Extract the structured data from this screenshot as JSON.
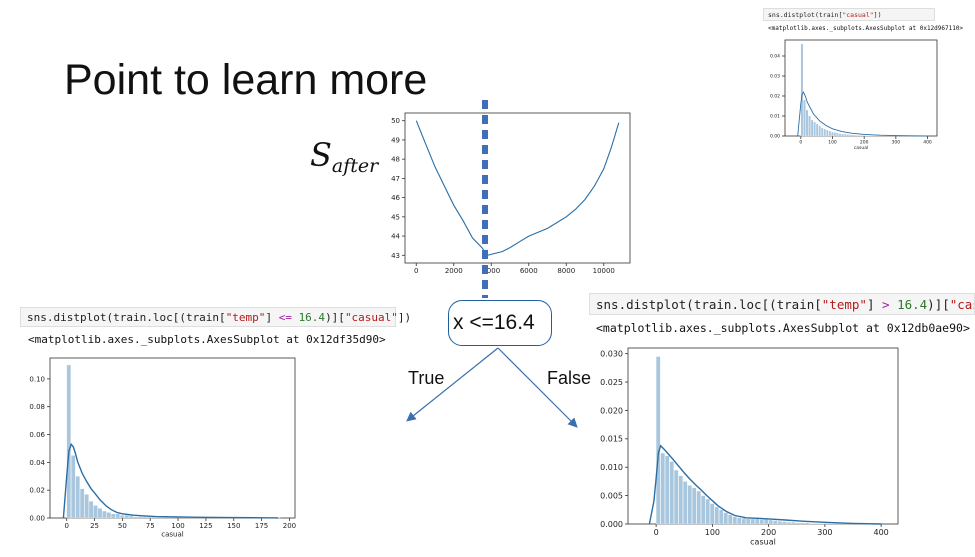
{
  "title": "Point to learn more",
  "s_after_label": {
    "base": "S",
    "sub": "after"
  },
  "split_node": {
    "label": "x <=16.4"
  },
  "branches": {
    "left": "True",
    "right": "False"
  },
  "code_left": {
    "parts": [
      "sns.distplot(train.loc[(train[",
      "\"temp\"",
      "] ",
      "<=",
      " ",
      "16.4",
      ")][",
      "\"casual\"",
      "])"
    ],
    "output": "<matplotlib.axes._subplots.AxesSubplot at 0x12df35d90>"
  },
  "code_right": {
    "parts": [
      "sns.distplot(train.loc[(train[",
      "\"temp\"",
      "] ",
      ">",
      " ",
      "16.4",
      ")][",
      "\"casual\"",
      "]"
    ],
    "output": "<matplotlib.axes._subplots.AxesSubplot at 0x12db0ae90>"
  },
  "code_top": {
    "parts": [
      "sns.distplot(train[",
      "\"casual\"",
      "])"
    ],
    "output": "<matplotlib.axes._subplots.AxesSubplot at 0x12d967110>"
  },
  "colors": {
    "hist": "#a8c6dd",
    "line": "#2b6ea6",
    "split": "#3f6fb8"
  },
  "chart_data": [
    {
      "id": "s_after",
      "type": "line",
      "xlabel": "",
      "ylabel": "",
      "xlim": [
        -600,
        11400
      ],
      "ylim": [
        42.6,
        50.4
      ],
      "xticks": [
        0,
        2000,
        4000,
        6000,
        8000,
        10000
      ],
      "yticks": [
        43,
        44,
        45,
        46,
        47,
        48,
        49,
        50
      ],
      "x": [
        0,
        500,
        1000,
        1500,
        2000,
        2500,
        3000,
        3500,
        3800,
        4200,
        4600,
        5000,
        5500,
        6000,
        6500,
        7000,
        7500,
        8000,
        8500,
        9000,
        9500,
        10000,
        10400,
        10800
      ],
      "y": [
        50,
        48.8,
        47.6,
        46.6,
        45.6,
        44.8,
        43.9,
        43.4,
        43.0,
        43.1,
        43.2,
        43.4,
        43.7,
        44.0,
        44.2,
        44.4,
        44.7,
        45.0,
        45.4,
        45.9,
        46.6,
        47.5,
        48.6,
        49.9
      ],
      "split_x": 3800
    },
    {
      "id": "casual_le",
      "type": "bar",
      "xlabel": "casual",
      "xlim": [
        -15,
        205
      ],
      "ylim": [
        0,
        0.115
      ],
      "xticks": [
        0,
        25,
        50,
        75,
        100,
        125,
        150,
        175,
        200
      ],
      "yticks": [
        0.0,
        0.02,
        0.04,
        0.06,
        0.08,
        0.1
      ],
      "bin_width": 4,
      "bins_start": 0,
      "values": [
        0.11,
        0.045,
        0.03,
        0.021,
        0.017,
        0.012,
        0.009,
        0.007,
        0.005,
        0.004,
        0.003,
        0.003,
        0.002,
        0.002,
        0.0015,
        0.001,
        0.001,
        0.001,
        0.0008,
        0.0007,
        0.0006,
        0.0005,
        0.0005,
        0.0004,
        0.0004,
        0.0003,
        0.0003,
        0.0003,
        0.0002,
        0.0002,
        0.0002,
        0.0002,
        0.0002,
        0.0001,
        0.0001,
        0.0001,
        0.0001,
        0.0001,
        0.0001,
        0.0001,
        0.0001,
        0.0001,
        0.0001,
        0.0001,
        0.0001,
        0.0001,
        0.0001,
        0.0001
      ],
      "kde_x": [
        -3,
        0,
        2,
        4,
        6,
        8,
        10,
        14,
        18,
        22,
        26,
        30,
        35,
        40,
        45,
        50,
        60,
        70,
        80,
        100,
        120,
        150,
        190
      ],
      "kde_y": [
        0.0,
        0.03,
        0.048,
        0.053,
        0.051,
        0.046,
        0.04,
        0.032,
        0.026,
        0.021,
        0.017,
        0.013,
        0.009,
        0.006,
        0.004,
        0.003,
        0.002,
        0.0015,
        0.001,
        0.0007,
        0.0005,
        0.0003,
        0.0001
      ]
    },
    {
      "id": "casual_gt",
      "type": "bar",
      "xlabel": "casual",
      "xlim": [
        -50,
        430
      ],
      "ylim": [
        0,
        0.031
      ],
      "xticks": [
        0,
        100,
        200,
        300,
        400
      ],
      "yticks": [
        0.0,
        0.005,
        0.01,
        0.015,
        0.02,
        0.025,
        0.03
      ],
      "bin_width": 8,
      "bins_start": 0,
      "values": [
        0.0295,
        0.0125,
        0.012,
        0.011,
        0.0095,
        0.0085,
        0.0075,
        0.0068,
        0.0064,
        0.0058,
        0.005,
        0.0044,
        0.0036,
        0.003,
        0.0025,
        0.002,
        0.0016,
        0.0013,
        0.0011,
        0.001,
        0.0009,
        0.0009,
        0.0009,
        0.0008,
        0.0008,
        0.0007,
        0.0006,
        0.0005,
        0.0004,
        0.0003,
        0.0003,
        0.0002,
        0.0002,
        0.0002,
        0.0001,
        0.0001,
        0.0001,
        0.0001,
        0.0001,
        0.0001,
        0.0001,
        0.0001,
        0.0001,
        0.0001,
        0.0001,
        0.0001,
        0.0001,
        0.0001,
        0.0001,
        0.0001
      ],
      "kde_x": [
        -12,
        -4,
        0,
        4,
        8,
        14,
        20,
        30,
        40,
        50,
        60,
        70,
        80,
        90,
        100,
        110,
        125,
        140,
        160,
        180,
        200,
        230,
        260,
        300,
        350,
        400
      ],
      "kde_y": [
        0.0,
        0.004,
        0.008,
        0.0125,
        0.0138,
        0.0132,
        0.0125,
        0.0114,
        0.0102,
        0.009,
        0.0079,
        0.0069,
        0.006,
        0.005,
        0.0041,
        0.0032,
        0.0022,
        0.0015,
        0.0011,
        0.001,
        0.0009,
        0.0007,
        0.0005,
        0.0003,
        0.0001,
        0.0
      ]
    },
    {
      "id": "casual_all",
      "type": "bar",
      "xlabel": "casual",
      "xlim": [
        -50,
        430
      ],
      "ylim": [
        0,
        0.048
      ],
      "xticks": [
        0,
        100,
        200,
        300,
        400
      ],
      "yticks": [
        0.0,
        0.01,
        0.02,
        0.03,
        0.04
      ],
      "bin_width": 8,
      "bins_start": 0,
      "values": [
        0.046,
        0.018,
        0.013,
        0.01,
        0.008,
        0.007,
        0.006,
        0.005,
        0.004,
        0.0035,
        0.003,
        0.0025,
        0.002,
        0.0018,
        0.0015,
        0.0012,
        0.001,
        0.0009,
        0.0008,
        0.0007,
        0.0006,
        0.0005,
        0.0004,
        0.0004,
        0.0003,
        0.0003,
        0.0002,
        0.0002,
        0.0002,
        0.0002,
        0.0001,
        0.0001,
        0.0001,
        0.0001,
        0.0001,
        0.0001,
        0.0001,
        0.0001,
        0.0001,
        0.0001,
        0.0001,
        0.0001,
        0.0001,
        0.0001,
        0.0001,
        0.0001,
        0.0001,
        0.0001,
        0.0001,
        0.0001
      ],
      "kde_x": [
        -10,
        -4,
        0,
        4,
        8,
        14,
        20,
        30,
        40,
        60,
        80,
        100,
        130,
        160,
        200,
        250,
        300,
        350,
        400
      ],
      "kde_y": [
        0.0,
        0.01,
        0.016,
        0.021,
        0.022,
        0.02,
        0.017,
        0.014,
        0.011,
        0.0075,
        0.0052,
        0.0036,
        0.0022,
        0.0014,
        0.0008,
        0.0004,
        0.0002,
        0.0001,
        0.0
      ]
    }
  ]
}
